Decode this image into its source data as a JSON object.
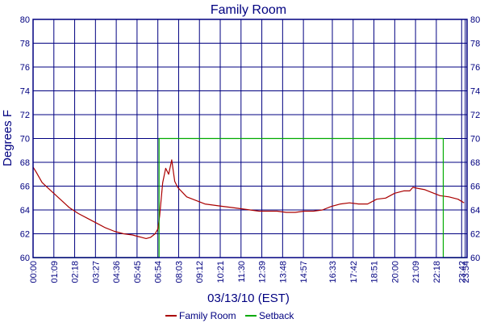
{
  "chart_data": {
    "type": "line",
    "title": "Family Room",
    "xlabel": "03/13/10 (EST)",
    "ylabel": "Degrees F",
    "ylim": [
      60,
      80
    ],
    "xlim_minutes": [
      0,
      1440
    ],
    "y_ticks": [
      "60",
      "62",
      "64",
      "66",
      "68",
      "70",
      "72",
      "74",
      "76",
      "78",
      "80"
    ],
    "x_ticks": [
      "00:00",
      "01:09",
      "02:18",
      "03:27",
      "04:36",
      "05:45",
      "06:54",
      "08:03",
      "09:12",
      "10:21",
      "11:30",
      "12:39",
      "13:48",
      "14:57",
      "16:33",
      "17:42",
      "18:51",
      "20:00",
      "21:09",
      "22:18",
      "23:42",
      "23:54"
    ],
    "x_tick_minutes": [
      0,
      69,
      138,
      207,
      276,
      345,
      414,
      483,
      552,
      621,
      690,
      759,
      828,
      897,
      993,
      1062,
      1131,
      1200,
      1269,
      1338,
      1422,
      1434
    ],
    "grid": true,
    "legend_position": "bottom",
    "series": [
      {
        "name": "Family Room",
        "color": "#aa0000",
        "x": [
          "00:00",
          "00:10",
          "00:30",
          "01:00",
          "01:30",
          "02:00",
          "02:30",
          "03:00",
          "03:30",
          "04:00",
          "04:30",
          "05:00",
          "05:30",
          "05:45",
          "06:00",
          "06:15",
          "06:30",
          "06:45",
          "06:54",
          "07:00",
          "07:10",
          "07:20",
          "07:30",
          "07:40",
          "07:50",
          "08:00",
          "08:15",
          "08:30",
          "09:00",
          "09:30",
          "10:00",
          "10:30",
          "11:00",
          "11:30",
          "12:00",
          "12:30",
          "13:00",
          "13:30",
          "14:00",
          "14:30",
          "15:00",
          "15:30",
          "16:00",
          "16:30",
          "17:00",
          "17:30",
          "18:00",
          "18:30",
          "19:00",
          "19:30",
          "20:00",
          "20:30",
          "20:50",
          "21:00",
          "21:20",
          "21:40",
          "22:00",
          "22:30",
          "23:00",
          "23:30",
          "23:50"
        ],
        "y": [
          67.6,
          67.2,
          66.3,
          65.6,
          64.9,
          64.2,
          63.7,
          63.3,
          62.9,
          62.5,
          62.2,
          62.0,
          61.9,
          61.8,
          61.7,
          61.6,
          61.7,
          62.0,
          62.4,
          63.5,
          66.3,
          67.5,
          67.0,
          68.2,
          66.4,
          65.9,
          65.5,
          65.1,
          64.8,
          64.5,
          64.4,
          64.3,
          64.2,
          64.1,
          64.0,
          63.9,
          63.9,
          63.9,
          63.8,
          63.8,
          63.9,
          63.9,
          64.0,
          64.3,
          64.5,
          64.6,
          64.5,
          64.5,
          64.9,
          65.0,
          65.4,
          65.6,
          65.6,
          65.9,
          65.8,
          65.7,
          65.5,
          65.2,
          65.1,
          64.9,
          64.6
        ]
      },
      {
        "name": "Setback",
        "color": "#00aa00",
        "x": [
          "00:00",
          "06:58",
          "06:58",
          "22:41",
          "22:41",
          "23:54"
        ],
        "y": [
          60,
          60,
          70,
          70,
          60,
          60
        ]
      }
    ]
  },
  "colors": {
    "frame": "#000080",
    "grid": "#000080",
    "text": "#000080",
    "background": "#ffffff"
  }
}
